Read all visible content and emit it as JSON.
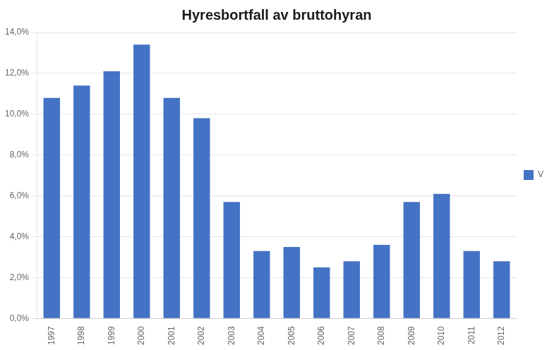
{
  "chart_data": {
    "type": "bar",
    "title": "Hyresbortfall av bruttohyran",
    "categories": [
      "1997",
      "1998",
      "1999",
      "2000",
      "2001",
      "2002",
      "2003",
      "2004",
      "2005",
      "2006",
      "2007",
      "2008",
      "2009",
      "2010",
      "2011",
      "2012"
    ],
    "series": [
      {
        "name": "V",
        "color": "#4472C4",
        "values": [
          0.108,
          0.114,
          0.121,
          0.134,
          0.108,
          0.098,
          0.057,
          0.033,
          0.035,
          0.025,
          0.028,
          0.036,
          0.057,
          0.061,
          0.033,
          0.028
        ]
      }
    ],
    "ylim": [
      0,
      0.14
    ],
    "yticks": [
      {
        "value": 0.0,
        "label": "0,0%"
      },
      {
        "value": 0.02,
        "label": "2,0%"
      },
      {
        "value": 0.04,
        "label": "4,0%"
      },
      {
        "value": 0.06,
        "label": "6,0%"
      },
      {
        "value": 0.08,
        "label": "8,0%"
      },
      {
        "value": 0.1,
        "label": "10,0%"
      },
      {
        "value": 0.12,
        "label": "12,0%"
      },
      {
        "value": 0.14,
        "label": "14,0%"
      }
    ],
    "grid": true,
    "legend": "right"
  }
}
